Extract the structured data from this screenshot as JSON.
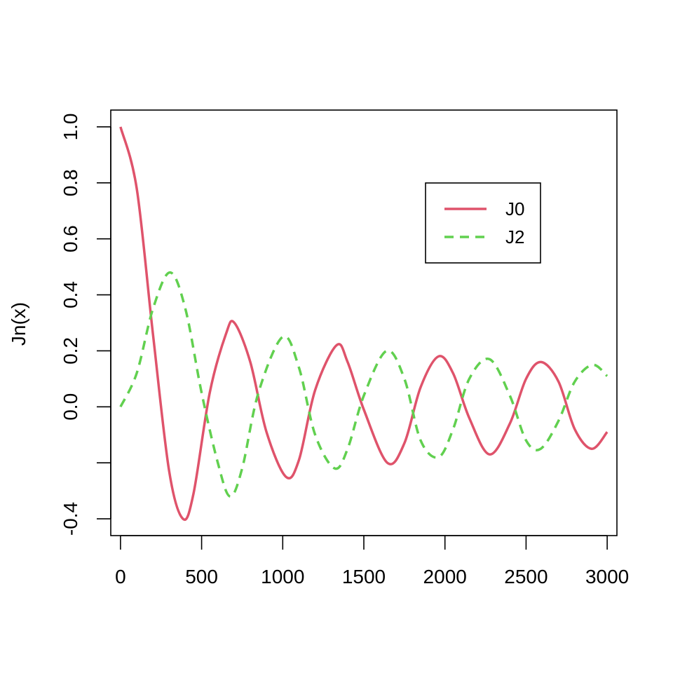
{
  "chart_data": {
    "type": "line",
    "title": "",
    "xlabel": "",
    "ylabel": "Jn(x)",
    "xlim": [
      -60,
      3060
    ],
    "ylim": [
      -0.46,
      1.06
    ],
    "x_ticks": [
      0,
      500,
      1000,
      1500,
      2000,
      2500,
      3000
    ],
    "x_tick_labels": [
      "0",
      "500",
      "1000",
      "1500",
      "2000",
      "2500",
      "3000"
    ],
    "y_ticks": [
      -0.4,
      -0.2,
      0.0,
      0.2,
      0.4,
      0.6,
      0.8,
      1.0
    ],
    "y_tick_labels": [
      "-0.4",
      "",
      "0.0",
      "0.2",
      "0.4",
      "0.6",
      "0.8",
      "1.0"
    ],
    "grid": false,
    "legend_position": "top-right",
    "series": [
      {
        "name": "J0",
        "color": "#DF536B",
        "line_style": "solid",
        "x": [
          0,
          100,
          200,
          300,
          385,
          450,
          550,
          650,
          702,
          800,
          900,
          1020,
          1100,
          1200,
          1332,
          1400,
          1500,
          1645,
          1750,
          1850,
          1960,
          2050,
          2150,
          2275,
          2400,
          2500,
          2592,
          2700,
          2800,
          2905,
          3000
        ],
        "values": [
          1.0,
          0.78,
          0.26,
          -0.23,
          -0.4,
          -0.31,
          0.05,
          0.26,
          0.3,
          0.16,
          -0.09,
          -0.25,
          -0.19,
          0.06,
          0.22,
          0.16,
          -0.01,
          -0.2,
          -0.13,
          0.07,
          0.18,
          0.12,
          -0.04,
          -0.17,
          -0.06,
          0.1,
          0.16,
          0.09,
          -0.08,
          -0.15,
          -0.09
        ]
      },
      {
        "name": "J2",
        "color": "#61D04F",
        "line_style": "dashed",
        "x": [
          0,
          100,
          200,
          305,
          400,
          500,
          600,
          675,
          750,
          850,
          1000,
          1100,
          1200,
          1320,
          1400,
          1500,
          1640,
          1750,
          1850,
          1960,
          2050,
          2150,
          2275,
          2400,
          2500,
          2590,
          2700,
          2800,
          2910,
          3000
        ],
        "values": [
          0.0,
          0.12,
          0.35,
          0.48,
          0.35,
          0.05,
          -0.2,
          -0.32,
          -0.22,
          0.05,
          0.25,
          0.14,
          -0.1,
          -0.22,
          -0.15,
          0.04,
          0.2,
          0.1,
          -0.12,
          -0.18,
          -0.08,
          0.1,
          0.17,
          0.04,
          -0.12,
          -0.15,
          -0.05,
          0.09,
          0.15,
          0.11
        ]
      }
    ]
  }
}
